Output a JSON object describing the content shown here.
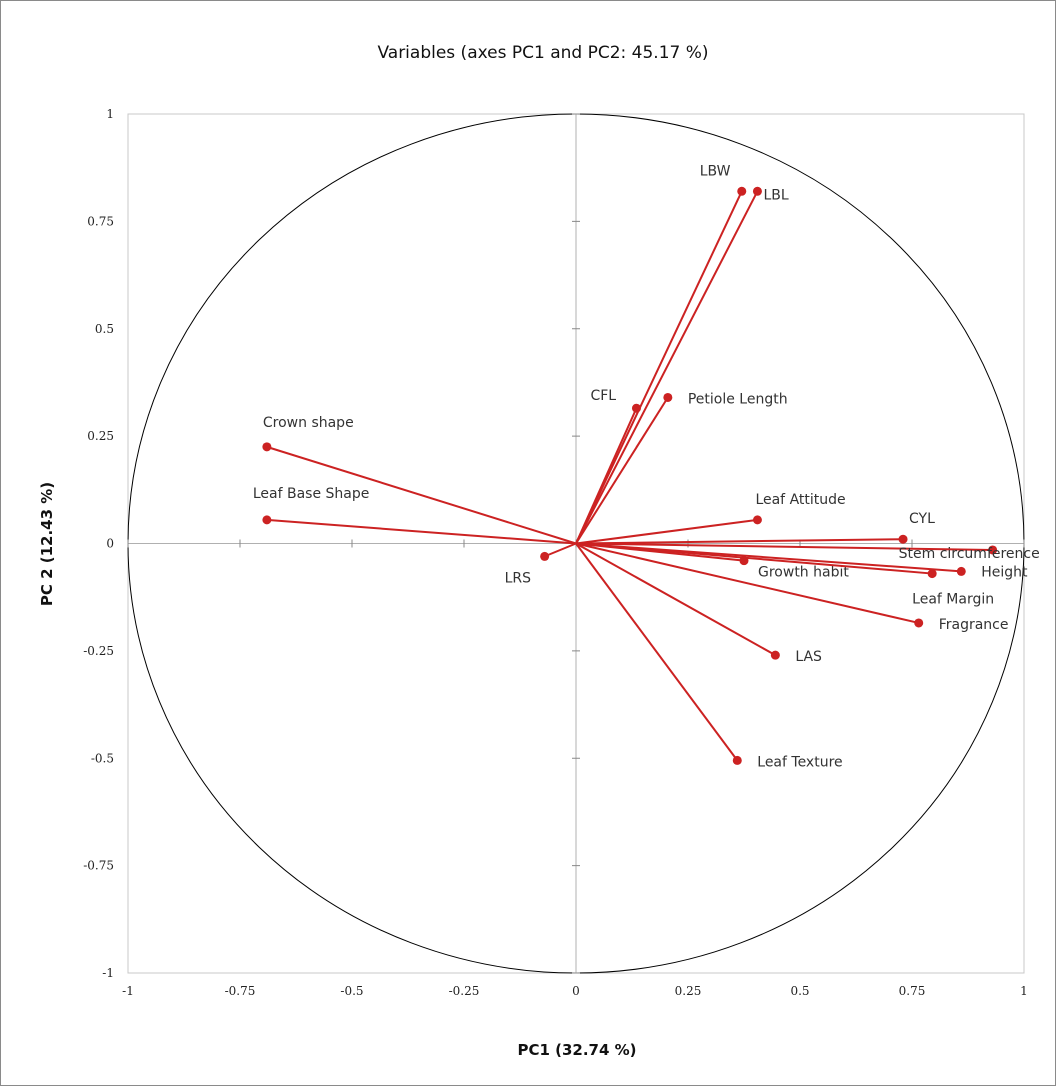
{
  "chart_data": {
    "type": "scatter",
    "title": "Variables (axes PC1 and PC2: 45.17 %)",
    "xlabel": "PC1 (32.74 %)",
    "ylabel": "PC 2 (12.43 %)",
    "xlim": [
      -1,
      1
    ],
    "ylim": [
      -1,
      1
    ],
    "grid": false,
    "unit_circle": true,
    "x_ticks": [
      "-1",
      "-0.75",
      "-0.5",
      "-0.25",
      "0",
      "0.25",
      "0.5",
      "0.75",
      "1"
    ],
    "y_ticks": [
      "1",
      "0.75",
      "0.5",
      "0.25",
      "0",
      "-0.25",
      "-0.5",
      "-0.75",
      "-1"
    ],
    "colors": {
      "vector": "#cc2222",
      "circle": "#000000",
      "axes": "#b0b0b0"
    },
    "variables": [
      {
        "name": "LBW",
        "x": 0.37,
        "y": 0.82
      },
      {
        "name": "LBL",
        "x": 0.405,
        "y": 0.82
      },
      {
        "name": "CFL",
        "x": 0.135,
        "y": 0.315
      },
      {
        "name": "Petiole Length",
        "x": 0.205,
        "y": 0.34
      },
      {
        "name": "Crown shape",
        "x": -0.69,
        "y": 0.225
      },
      {
        "name": "Leaf Base Shape",
        "x": -0.69,
        "y": 0.055
      },
      {
        "name": "Leaf Attitude",
        "x": 0.405,
        "y": 0.055
      },
      {
        "name": "CYL",
        "x": 0.73,
        "y": 0.01
      },
      {
        "name": "Stem circumference",
        "x": 0.93,
        "y": -0.015
      },
      {
        "name": "Height",
        "x": 0.86,
        "y": -0.065
      },
      {
        "name": "Growth habit",
        "x": 0.375,
        "y": -0.04
      },
      {
        "name": "Leaf Margin",
        "x": 0.795,
        "y": -0.07
      },
      {
        "name": "Fragrance",
        "x": 0.765,
        "y": -0.185
      },
      {
        "name": "LAS",
        "x": 0.445,
        "y": -0.26
      },
      {
        "name": "Leaf Texture",
        "x": 0.36,
        "y": -0.505
      },
      {
        "name": "LRS",
        "x": -0.07,
        "y": -0.03
      }
    ]
  }
}
